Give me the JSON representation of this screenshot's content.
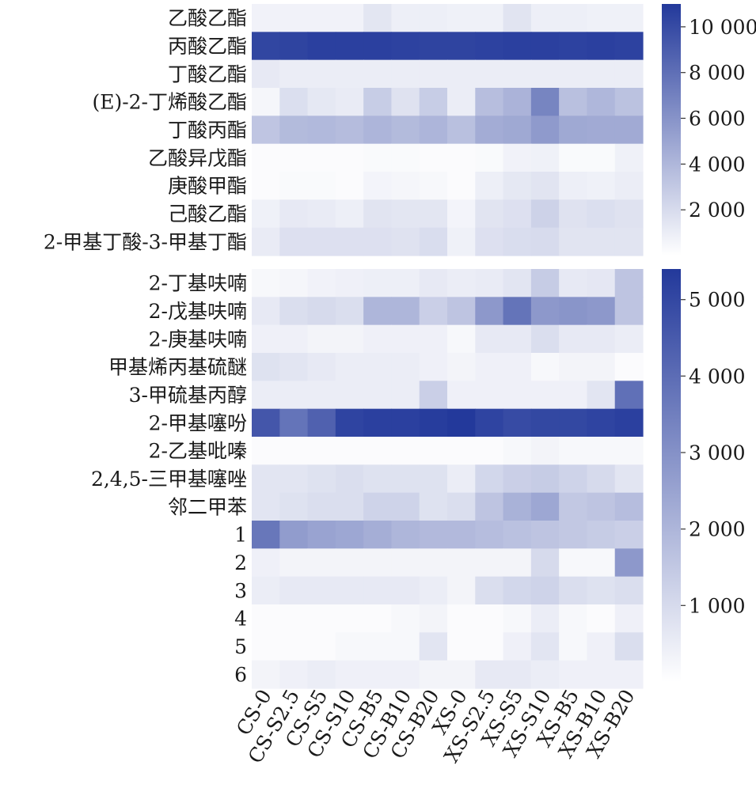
{
  "chart_data": [
    {
      "type": "heatmap",
      "title": "",
      "xlabel": "",
      "ylabel": "",
      "x_categories": [
        "CS-0",
        "CS-S2.5",
        "CS-S5",
        "CS-S10",
        "CS-B5",
        "CS-B10",
        "CS-B20",
        "XS-0",
        "XS-S2.5",
        "XS-S5",
        "XS-S10",
        "XS-B5",
        "XS-B10",
        "XS-B20"
      ],
      "y_categories": [
        "乙酸乙酯",
        "丙酸乙酯",
        "丁酸乙酯",
        "(E)-2-丁烯酸乙酯",
        "丁酸丙酯",
        "乙酸异戊酯",
        "庚酸甲酯",
        "己酸乙酯",
        "2-甲基丁酸-3-甲基丁酯"
      ],
      "values": [
        [
          700,
          700,
          700,
          700,
          1400,
          900,
          900,
          800,
          800,
          1500,
          900,
          900,
          800,
          800
        ],
        [
          10300,
          10400,
          10600,
          10600,
          10600,
          10500,
          10400,
          10400,
          10500,
          10600,
          10600,
          10500,
          10600,
          10500
        ],
        [
          1200,
          1000,
          1000,
          1000,
          1000,
          1000,
          1000,
          1000,
          1000,
          1000,
          1000,
          1000,
          1000,
          1000
        ],
        [
          500,
          1800,
          1300,
          1100,
          2800,
          1600,
          2800,
          1000,
          3600,
          4200,
          6800,
          3500,
          4000,
          3400
        ],
        [
          3200,
          3800,
          3900,
          3700,
          4100,
          3800,
          4100,
          3500,
          4600,
          4800,
          5600,
          4800,
          4700,
          4700
        ],
        [
          200,
          200,
          200,
          200,
          300,
          300,
          200,
          200,
          300,
          700,
          800,
          300,
          300,
          800
        ],
        [
          200,
          300,
          300,
          200,
          600,
          500,
          400,
          200,
          900,
          1300,
          1500,
          900,
          800,
          1000
        ],
        [
          800,
          1200,
          1100,
          900,
          1500,
          1400,
          1400,
          600,
          1500,
          1700,
          2500,
          1600,
          1800,
          1600
        ],
        [
          1100,
          1700,
          1700,
          1700,
          1700,
          1600,
          1900,
          800,
          1700,
          1900,
          2000,
          1500,
          1500,
          1500
        ]
      ],
      "colorbar": {
        "range": [
          0,
          11000
        ],
        "ticks": [
          2000,
          4000,
          6000,
          8000,
          10000
        ],
        "tick_labels": [
          "2 000",
          "4 000",
          "6 000",
          "8 000",
          "10 000"
        ]
      },
      "color_low": "#ffffff",
      "color_high": "#23399b"
    },
    {
      "type": "heatmap",
      "title": "",
      "xlabel": "",
      "ylabel": "",
      "x_categories": [
        "CS-0",
        "CS-S2.5",
        "CS-S5",
        "CS-S10",
        "CS-B5",
        "CS-B10",
        "CS-B20",
        "XS-0",
        "XS-S2.5",
        "XS-S5",
        "XS-S10",
        "XS-B5",
        "XS-B10",
        "XS-B20"
      ],
      "y_categories": [
        "2-丁基呋喃",
        "2-戊基呋喃",
        "2-庚基呋喃",
        "甲基烯丙基硫醚",
        "3-甲硫基丙醇",
        "2-甲基噻吩",
        "2-乙基吡嗪",
        "2,4,5-三甲基噻唑",
        "邻二甲苯",
        "1",
        "2",
        "3",
        "4",
        "5",
        "6"
      ],
      "values": [
        [
          200,
          250,
          350,
          400,
          450,
          450,
          600,
          500,
          550,
          700,
          1400,
          600,
          650,
          1600
        ],
        [
          600,
          900,
          1000,
          900,
          2000,
          2000,
          1300,
          1600,
          2800,
          3800,
          2800,
          2900,
          2800,
          1600
        ],
        [
          400,
          400,
          300,
          300,
          400,
          400,
          400,
          200,
          600,
          600,
          900,
          600,
          600,
          500
        ],
        [
          800,
          700,
          600,
          500,
          500,
          500,
          400,
          300,
          400,
          400,
          200,
          300,
          300,
          100
        ],
        [
          500,
          500,
          500,
          500,
          500,
          500,
          1300,
          400,
          400,
          400,
          400,
          400,
          700,
          3900
        ],
        [
          4600,
          3800,
          4300,
          5100,
          5200,
          5200,
          5300,
          5400,
          5100,
          4900,
          5000,
          5000,
          5100,
          5200
        ],
        [
          100,
          100,
          100,
          100,
          100,
          100,
          100,
          100,
          100,
          200,
          300,
          200,
          200,
          200
        ],
        [
          700,
          700,
          800,
          900,
          800,
          800,
          800,
          500,
          1100,
          1300,
          1400,
          1200,
          1000,
          700
        ],
        [
          700,
          800,
          900,
          900,
          1200,
          1200,
          800,
          900,
          1600,
          2100,
          2400,
          1500,
          1600,
          1800
        ],
        [
          3700,
          2700,
          2500,
          2400,
          2200,
          2000,
          1900,
          1900,
          1800,
          1700,
          1600,
          1500,
          1400,
          1300
        ],
        [
          400,
          300,
          300,
          300,
          300,
          300,
          300,
          300,
          300,
          300,
          1000,
          200,
          200,
          2800
        ],
        [
          500,
          600,
          600,
          600,
          600,
          600,
          500,
          300,
          900,
          1100,
          1200,
          900,
          800,
          900
        ],
        [
          100,
          100,
          100,
          100,
          100,
          200,
          300,
          100,
          100,
          200,
          500,
          200,
          100,
          400
        ],
        [
          100,
          100,
          100,
          200,
          200,
          200,
          700,
          100,
          100,
          400,
          700,
          200,
          400,
          900
        ],
        [
          300,
          400,
          500,
          400,
          400,
          400,
          300,
          300,
          600,
          600,
          500,
          400,
          400,
          400
        ]
      ],
      "colorbar": {
        "range": [
          0,
          5400
        ],
        "ticks": [
          1000,
          2000,
          3000,
          4000,
          5000
        ],
        "tick_labels": [
          "1 000",
          "2 000",
          "3 000",
          "4 000",
          "5 000"
        ]
      },
      "color_low": "#ffffff",
      "color_high": "#23399b"
    }
  ]
}
